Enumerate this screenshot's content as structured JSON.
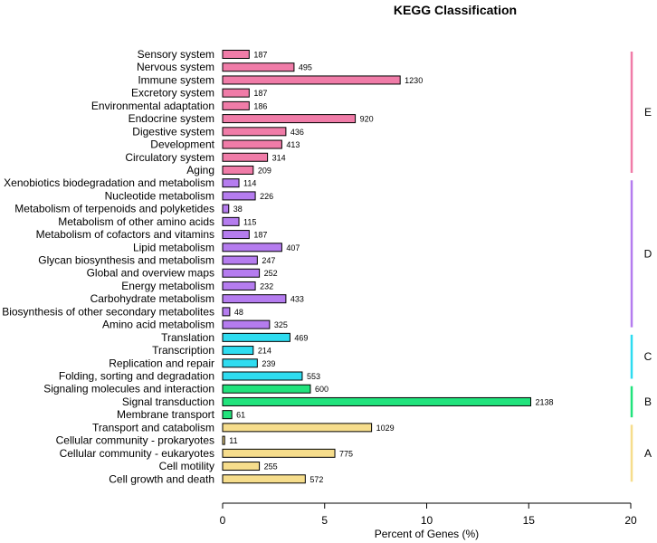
{
  "chart_data": {
    "type": "bar",
    "orientation": "horizontal",
    "title": "KEGG Classification",
    "xlabel": "Percent of Genes (%)",
    "ylabel": "",
    "xlim": [
      0,
      20
    ],
    "xticks": [
      "0",
      "5",
      "10",
      "15",
      "20"
    ],
    "grid": false,
    "groups": [
      {
        "name": "E",
        "color": "#f07ca8",
        "categories": [
          "Sensory system",
          "Nervous system",
          "Immune system",
          "Excretory system",
          "Environmental adaptation",
          "Endocrine system",
          "Digestive system",
          "Development",
          "Circulatory system",
          "Aging"
        ],
        "values": [
          1.3,
          3.5,
          8.7,
          1.3,
          1.3,
          6.5,
          3.1,
          2.9,
          2.2,
          1.5
        ],
        "labels": [
          "187",
          "495",
          "1230",
          "187",
          "186",
          "920",
          "436",
          "413",
          "314",
          "209"
        ]
      },
      {
        "name": "D",
        "color": "#b57cef",
        "categories": [
          "Xenobiotics biodegradation and metabolism",
          "Nucleotide metabolism",
          "Metabolism of terpenoids and polyketides",
          "Metabolism of other amino acids",
          "Metabolism of cofactors and vitamins",
          "Lipid metabolism",
          "Glycan biosynthesis and metabolism",
          "Global and overview maps",
          "Energy metabolism",
          "Carbohydrate metabolism",
          "Biosynthesis of other secondary metabolites",
          "Amino acid metabolism"
        ],
        "values": [
          0.8,
          1.6,
          0.3,
          0.8,
          1.3,
          2.9,
          1.7,
          1.8,
          1.6,
          3.1,
          0.35,
          2.3
        ],
        "labels": [
          "114",
          "226",
          "38",
          "115",
          "187",
          "407",
          "247",
          "252",
          "232",
          "433",
          "48",
          "325"
        ]
      },
      {
        "name": "C",
        "color": "#2edcf0",
        "categories": [
          "Translation",
          "Transcription",
          "Replication and repair",
          "Folding, sorting and degradation"
        ],
        "values": [
          3.3,
          1.5,
          1.7,
          3.9
        ],
        "labels": [
          "469",
          "214",
          "239",
          "553"
        ]
      },
      {
        "name": "B",
        "color": "#21e37c",
        "categories": [
          "Signaling molecules and interaction",
          "Signal transduction",
          "Membrane transport"
        ],
        "values": [
          4.3,
          15.1,
          0.45
        ],
        "labels": [
          "600",
          "2138",
          "61"
        ]
      },
      {
        "name": "A",
        "color": "#f6dd8c",
        "categories": [
          "Transport and catabolism",
          "Cellular community - prokaryotes",
          "Cellular community - eukaryotes",
          "Cell motility",
          "Cell growth and death"
        ],
        "values": [
          7.3,
          0.1,
          5.5,
          1.8,
          4.05
        ],
        "labels": [
          "1029",
          "11",
          "775",
          "255",
          "572"
        ]
      }
    ]
  }
}
